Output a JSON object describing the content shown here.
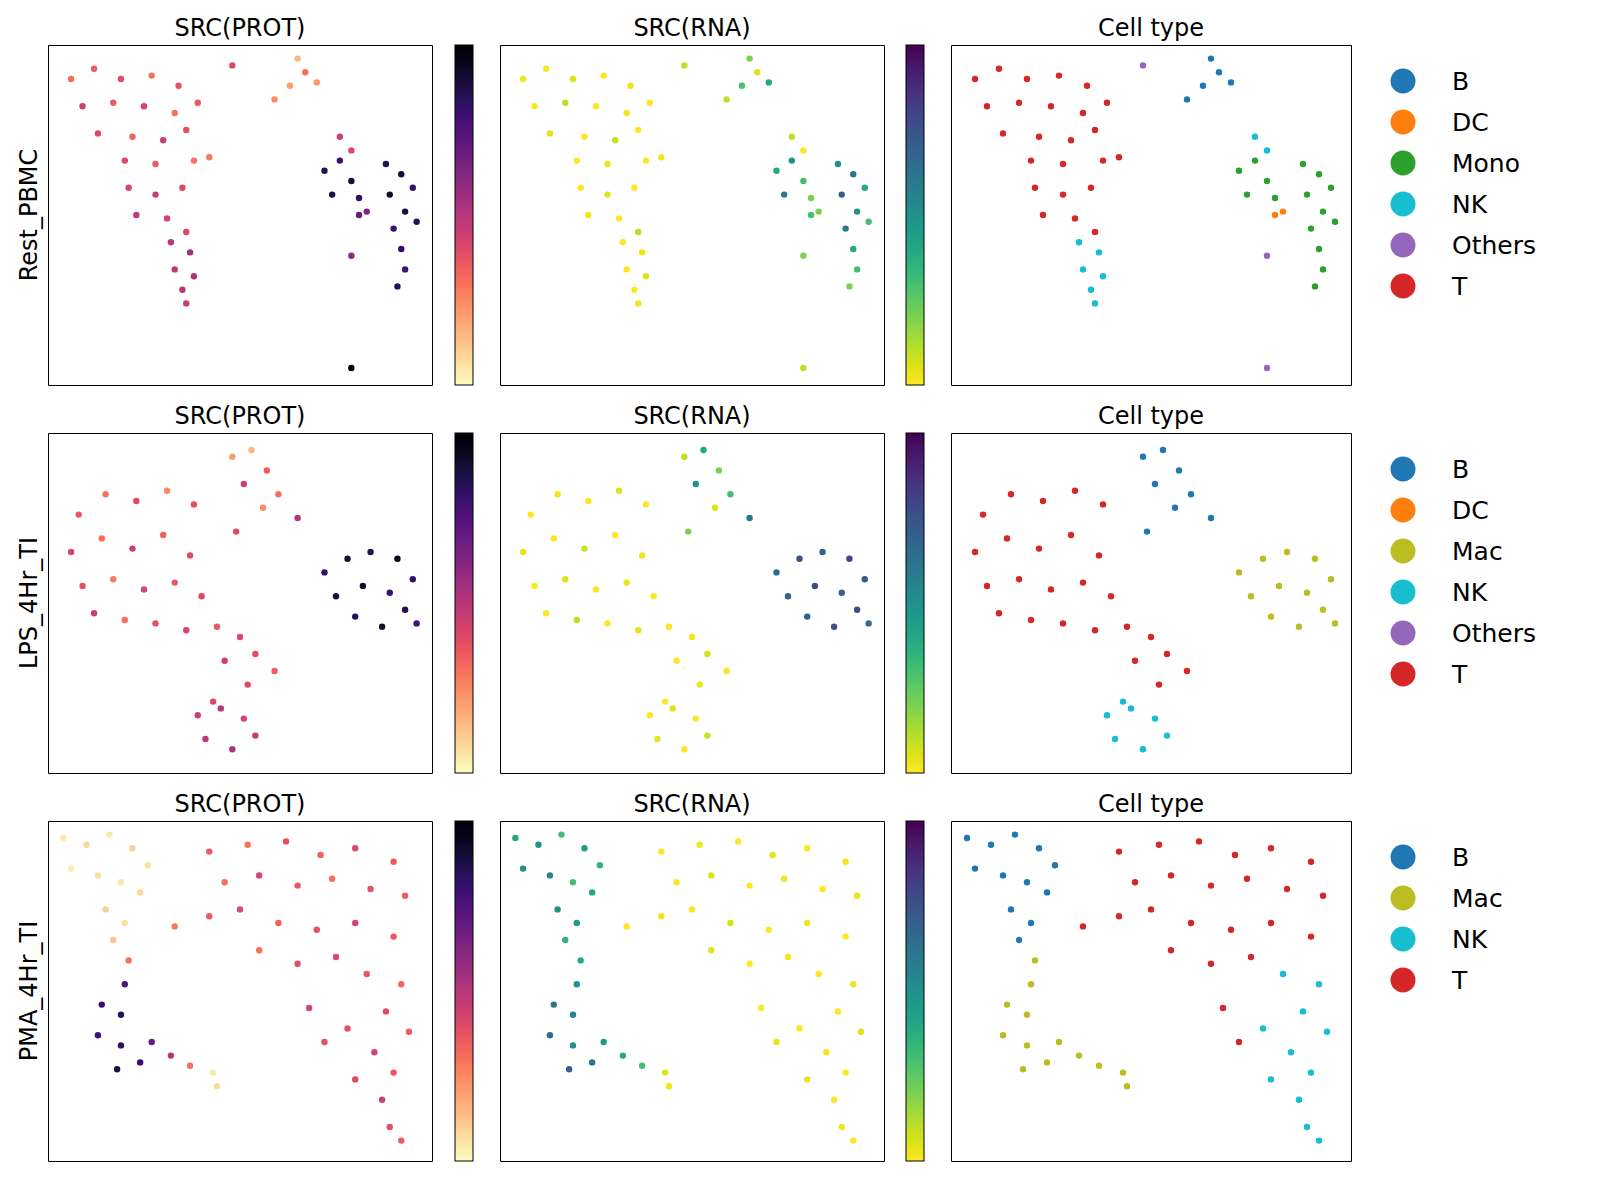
{
  "chart_data": [
    {
      "type": "scatter",
      "ylabel": "Rest_PBMC",
      "xlim": [
        0,
        10
      ],
      "ylim": [
        0,
        10
      ],
      "tick_labels": false,
      "x": [
        0.6,
        1.2,
        1.9,
        2.7,
        3.4,
        0.9,
        1.7,
        2.5,
        3.3,
        3.9,
        1.3,
        2.2,
        3.0,
        3.6,
        2.0,
        2.8,
        3.8,
        4.2,
        2.1,
        2.8,
        3.5,
        2.3,
        3.1,
        3.6,
        3.2,
        3.7,
        3.3,
        3.8,
        3.5,
        3.6,
        5.9,
        6.3,
        6.7,
        6.5,
        7.0,
        7.6,
        7.9,
        7.2,
        7.6,
        7.9,
        7.4,
        8.1,
        8.8,
        9.2,
        9.5,
        8.9,
        9.3,
        9.6,
        9.0,
        9.2,
        9.3,
        9.1,
        8.1,
        8.3,
        4.8,
        7.9,
        7.9
      ],
      "y": [
        9.0,
        9.3,
        9.0,
        9.1,
        8.8,
        8.2,
        8.3,
        8.2,
        8.0,
        8.3,
        7.4,
        7.3,
        7.2,
        7.5,
        6.6,
        6.5,
        6.6,
        6.7,
        5.8,
        5.6,
        5.8,
        5.0,
        4.9,
        4.5,
        4.2,
        3.9,
        3.4,
        3.2,
        2.8,
        2.4,
        8.4,
        8.8,
        9.2,
        9.6,
        8.9,
        7.3,
        6.9,
        6.3,
        6.6,
        6.0,
        5.6,
        5.5,
        6.5,
        6.2,
        5.8,
        5.6,
        5.1,
        4.8,
        4.6,
        4.0,
        3.4,
        2.9,
        5.0,
        5.1,
        9.4,
        3.8,
        0.5
      ],
      "panels": [
        {
          "title": "SRC(PROT)",
          "color": "magma_r",
          "color_range": [
            0,
            1
          ],
          "values": [
            0.3,
            0.35,
            0.4,
            0.3,
            0.38,
            0.45,
            0.35,
            0.42,
            0.3,
            0.36,
            0.4,
            0.33,
            0.45,
            0.38,
            0.4,
            0.35,
            0.3,
            0.28,
            0.42,
            0.45,
            0.4,
            0.48,
            0.43,
            0.4,
            0.5,
            0.55,
            0.48,
            0.52,
            0.5,
            0.45,
            0.25,
            0.2,
            0.3,
            0.15,
            0.22,
            0.45,
            0.4,
            0.85,
            0.8,
            0.9,
            0.88,
            0.82,
            0.85,
            0.9,
            0.8,
            0.92,
            0.88,
            0.85,
            0.8,
            0.82,
            0.78,
            0.85,
            0.7,
            0.65,
            0.4,
            0.6,
            1.0
          ]
        },
        {
          "title": "SRC(RNA)",
          "color": "viridis_r",
          "color_range": [
            0,
            1
          ],
          "values": [
            0.02,
            0,
            0.05,
            0,
            0.03,
            0,
            0.1,
            0,
            0.02,
            0,
            0.04,
            0,
            0.08,
            0,
            0,
            0.03,
            0,
            0.02,
            0,
            0.05,
            0,
            0.02,
            0,
            0.1,
            0,
            0.03,
            0,
            0.05,
            0,
            0.02,
            0.1,
            0.3,
            0.05,
            0.2,
            0.4,
            0.1,
            0,
            0.4,
            0.5,
            0.3,
            0.6,
            0.2,
            0.5,
            0.6,
            0.4,
            0.7,
            0.5,
            0.3,
            0.6,
            0.4,
            0.3,
            0.2,
            0.3,
            0.2,
            0.1,
            0.2,
            0.1
          ]
        },
        {
          "title": "Cell type",
          "cell_types": [
            "T",
            "T",
            "T",
            "T",
            "T",
            "T",
            "T",
            "T",
            "T",
            "T",
            "T",
            "T",
            "T",
            "T",
            "T",
            "T",
            "T",
            "T",
            "T",
            "T",
            "T",
            "T",
            "T",
            "T",
            "NK",
            "NK",
            "NK",
            "NK",
            "NK",
            "NK",
            "B",
            "B",
            "B",
            "B",
            "B",
            "NK",
            "NK",
            "Mono",
            "Mono",
            "Mono",
            "Mono",
            "Mono",
            "Mono",
            "Mono",
            "Mono",
            "Mono",
            "Mono",
            "Mono",
            "Mono",
            "Mono",
            "Mono",
            "Mono",
            "DC",
            "DC",
            "Others",
            "Others",
            "Others"
          ],
          "series": [
            {
              "name": "B",
              "color": "#1f77b4"
            },
            {
              "name": "DC",
              "color": "#ff7f0e"
            },
            {
              "name": "Mono",
              "color": "#2ca02c"
            },
            {
              "name": "NK",
              "color": "#17becf"
            },
            {
              "name": "Others",
              "color": "#9467bd"
            },
            {
              "name": "T",
              "color": "#d62728"
            }
          ]
        }
      ]
    },
    {
      "type": "scatter",
      "ylabel": "LPS_4Hr_TI",
      "xlim": [
        0,
        10
      ],
      "ylim": [
        0,
        10
      ],
      "tick_labels": false,
      "x": [
        0.8,
        1.5,
        2.3,
        3.1,
        3.8,
        0.6,
        1.4,
        2.2,
        3.0,
        3.7,
        0.9,
        1.7,
        2.5,
        3.3,
        4.0,
        1.2,
        2.0,
        2.8,
        3.6,
        4.4,
        5.0,
        4.6,
        5.4,
        5.9,
        5.2,
        3.9,
        4.5,
        5.1,
        4.1,
        4.8,
        5.4,
        4.3,
        4.8,
        5.3,
        5.7,
        5.1,
        6.0,
        6.5,
        5.6,
        4.9,
        7.2,
        7.8,
        8.4,
        9.1,
        9.5,
        7.5,
        8.2,
        8.9,
        9.3,
        8.0,
        8.7,
        9.6
      ],
      "y": [
        7.6,
        8.2,
        8.0,
        8.3,
        7.9,
        6.5,
        6.9,
        6.6,
        7.0,
        6.4,
        5.5,
        5.7,
        5.4,
        5.6,
        5.2,
        4.7,
        4.5,
        4.4,
        4.2,
        4.3,
        4.0,
        3.3,
        3.5,
        3.0,
        2.6,
        1.7,
        1.9,
        1.6,
        1.0,
        0.7,
        1.1,
        2.1,
        9.3,
        9.5,
        8.9,
        8.5,
        8.2,
        7.5,
        7.8,
        7.1,
        5.9,
        6.3,
        6.5,
        6.3,
        5.7,
        5.2,
        5.5,
        5.3,
        4.8,
        4.6,
        4.3,
        4.4
      ],
      "panels": [
        {
          "title": "SRC(PROT)",
          "color": "magma_r",
          "color_range": [
            0,
            1
          ],
          "values": [
            0.35,
            0.3,
            0.4,
            0.25,
            0.38,
            0.42,
            0.3,
            0.45,
            0.33,
            0.4,
            0.38,
            0.28,
            0.42,
            0.35,
            0.4,
            0.45,
            0.3,
            0.38,
            0.42,
            0.36,
            0.4,
            0.44,
            0.38,
            0.35,
            0.4,
            0.45,
            0.5,
            0.42,
            0.48,
            0.52,
            0.46,
            0.4,
            0.2,
            0.15,
            0.35,
            0.45,
            0.3,
            0.5,
            0.25,
            0.4,
            0.8,
            0.9,
            0.85,
            0.95,
            0.82,
            0.88,
            0.92,
            0.8,
            0.86,
            0.84,
            0.9,
            0.78
          ]
        },
        {
          "title": "SRC(RNA)",
          "color": "viridis_r",
          "color_range": [
            0,
            1
          ],
          "values": [
            0,
            0.02,
            0,
            0.05,
            0,
            0.03,
            0,
            0.08,
            0,
            0.02,
            0,
            0.05,
            0,
            0.03,
            0,
            0,
            0.1,
            0,
            0.04,
            0,
            0.02,
            0,
            0.06,
            0,
            0.03,
            0,
            0.05,
            0,
            0.03,
            0,
            0.08,
            0,
            0.1,
            0.4,
            0.2,
            0.5,
            0.3,
            0.6,
            0.05,
            0.2,
            0.65,
            0.75,
            0.7,
            0.8,
            0.72,
            0.68,
            0.78,
            0.7,
            0.76,
            0.7,
            0.74,
            0.66
          ]
        },
        {
          "title": "Cell type",
          "cell_types": [
            "T",
            "T",
            "T",
            "T",
            "T",
            "T",
            "T",
            "T",
            "T",
            "T",
            "T",
            "T",
            "T",
            "T",
            "T",
            "T",
            "T",
            "T",
            "T",
            "T",
            "T",
            "T",
            "T",
            "T",
            "T",
            "NK",
            "NK",
            "NK",
            "NK",
            "NK",
            "NK",
            "NK",
            "B",
            "B",
            "B",
            "B",
            "B",
            "B",
            "B",
            "B",
            "Mac",
            "Mac",
            "Mac",
            "Mac",
            "Mac",
            "Mac",
            "Mac",
            "Mac",
            "Mac",
            "Mac",
            "Mac",
            "Mac"
          ],
          "series": [
            {
              "name": "B",
              "color": "#1f77b4"
            },
            {
              "name": "DC",
              "color": "#ff7f0e"
            },
            {
              "name": "Mac",
              "color": "#bcbd22"
            },
            {
              "name": "NK",
              "color": "#17becf"
            },
            {
              "name": "Others",
              "color": "#9467bd"
            },
            {
              "name": "T",
              "color": "#d62728"
            }
          ]
        }
      ]
    },
    {
      "type": "scatter",
      "ylabel": "PMA_4Hr_TI",
      "xlim": [
        0,
        10
      ],
      "ylim": [
        0,
        10
      ],
      "tick_labels": false,
      "x": [
        0.4,
        1.0,
        1.6,
        2.2,
        2.6,
        0.6,
        1.3,
        1.9,
        2.4,
        1.5,
        2.0,
        1.7,
        2.1,
        2.0,
        1.4,
        1.9,
        1.3,
        1.9,
        1.8,
        2.4,
        2.7,
        3.2,
        3.7,
        4.3,
        4.4,
        4.2,
        5.2,
        6.2,
        7.1,
        8.0,
        9.0,
        4.6,
        5.5,
        6.5,
        7.4,
        8.4,
        9.3,
        3.3,
        4.2,
        5.0,
        6.0,
        7.0,
        8.0,
        9.0,
        5.5,
        6.5,
        7.5,
        6.8,
        7.2,
        8.3,
        9.2,
        8.8,
        9.4,
        7.8,
        8.5,
        9.0,
        8.0,
        8.7,
        8.9,
        9.2
      ],
      "y": [
        9.5,
        9.3,
        9.6,
        9.2,
        8.7,
        8.6,
        8.4,
        8.2,
        7.9,
        7.4,
        7.0,
        6.5,
        5.9,
        5.2,
        4.6,
        4.3,
        3.7,
        3.4,
        2.7,
        2.9,
        3.5,
        3.1,
        2.8,
        2.6,
        2.2,
        9.1,
        9.3,
        9.4,
        9.0,
        9.2,
        8.8,
        8.2,
        8.4,
        8.1,
        8.3,
        8.0,
        7.8,
        6.9,
        7.2,
        7.4,
        7.0,
        6.8,
        7.0,
        6.6,
        6.2,
        5.8,
        6.0,
        4.5,
        3.5,
        5.5,
        5.2,
        4.4,
        3.8,
        3.9,
        3.2,
        2.6,
        2.4,
        1.8,
        1.0,
        0.6
      ],
      "panels": [
        {
          "title": "SRC(PROT)",
          "color": "magma_r",
          "color_range": [
            0,
            1
          ],
          "values": [
            0.05,
            0.08,
            0.05,
            0.1,
            0.06,
            0.04,
            0.07,
            0.05,
            0.08,
            0.1,
            0.06,
            0.12,
            0.3,
            0.75,
            0.8,
            0.85,
            0.78,
            0.82,
            0.88,
            0.8,
            0.7,
            0.5,
            0.3,
            0.05,
            0.08,
            0.35,
            0.3,
            0.38,
            0.33,
            0.4,
            0.35,
            0.3,
            0.42,
            0.36,
            0.3,
            0.38,
            0.34,
            0.28,
            0.35,
            0.4,
            0.33,
            0.38,
            0.42,
            0.36,
            0.3,
            0.38,
            0.4,
            0.42,
            0.38,
            0.36,
            0.32,
            0.4,
            0.35,
            0.38,
            0.42,
            0.36,
            0.4,
            0.44,
            0.38,
            0.35
          ]
        },
        {
          "title": "SRC(RNA)",
          "color": "viridis_r",
          "color_range": [
            0,
            1
          ],
          "values": [
            0.4,
            0.5,
            0.3,
            0.45,
            0.35,
            0.5,
            0.55,
            0.3,
            0.4,
            0.5,
            0.45,
            0.35,
            0.4,
            0.5,
            0.6,
            0.55,
            0.65,
            0.5,
            0.7,
            0.6,
            0.45,
            0.4,
            0.3,
            0.05,
            0.02,
            0,
            0.02,
            0,
            0.04,
            0,
            0.02,
            0,
            0.05,
            0,
            0.02,
            0,
            0.03,
            0,
            0.02,
            0,
            0.06,
            0,
            0.02,
            0,
            0.04,
            0,
            0.02,
            0,
            0.03,
            0,
            0.02,
            0,
            0.05,
            0,
            0.02,
            0,
            0.03,
            0,
            0.02,
            0
          ]
        },
        {
          "title": "Cell type",
          "cell_types": [
            "B",
            "B",
            "B",
            "B",
            "B",
            "B",
            "B",
            "B",
            "B",
            "B",
            "B",
            "B",
            "Mac",
            "Mac",
            "Mac",
            "Mac",
            "Mac",
            "Mac",
            "Mac",
            "Mac",
            "Mac",
            "Mac",
            "Mac",
            "Mac",
            "Mac",
            "T",
            "T",
            "T",
            "T",
            "T",
            "T",
            "T",
            "T",
            "T",
            "T",
            "T",
            "T",
            "T",
            "T",
            "T",
            "T",
            "T",
            "T",
            "T",
            "T",
            "T",
            "T",
            "T",
            "T",
            "NK",
            "NK",
            "NK",
            "NK",
            "NK",
            "NK",
            "NK",
            "NK",
            "NK",
            "NK",
            "NK"
          ],
          "series": [
            {
              "name": "B",
              "color": "#1f77b4"
            },
            {
              "name": "Mac",
              "color": "#bcbd22"
            },
            {
              "name": "NK",
              "color": "#17becf"
            },
            {
              "name": "T",
              "color": "#d62728"
            }
          ]
        }
      ]
    }
  ]
}
